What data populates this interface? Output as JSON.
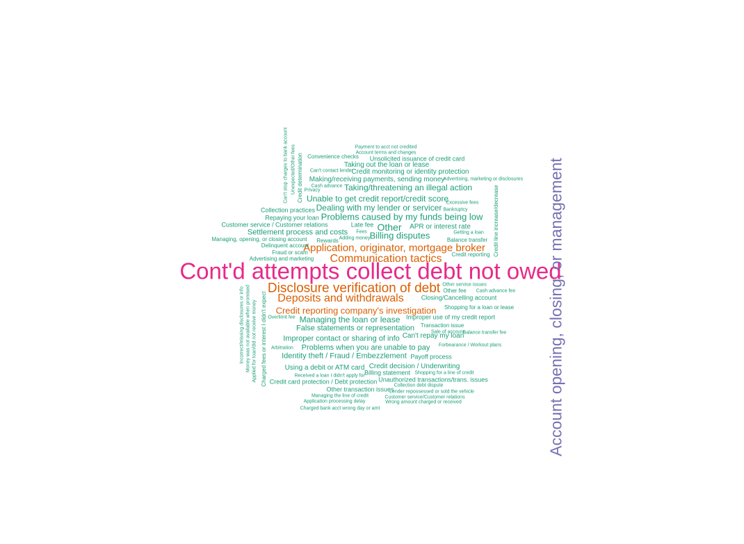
{
  "colors": {
    "background": "#ffffff",
    "level_1": "#e7298a",
    "level_2": "#7570b3",
    "level_3": "#d95f02",
    "level_4": "#1b9e77"
  },
  "words": [
    {
      "text": "Cont'd attempts collect debt not owed",
      "level": 1
    },
    {
      "text": "Account opening, closing, or management",
      "level": 2
    },
    {
      "text": "Disclosure verification of debt",
      "level": 3
    },
    {
      "text": "Application, originator, mortgage broker",
      "level": 3
    },
    {
      "text": "Communication tactics",
      "level": 3
    },
    {
      "text": "Deposits and withdrawals",
      "level": 3
    },
    {
      "text": "Credit reporting company's investigation",
      "level": 3
    },
    {
      "text": "Payment to acct not credited",
      "level": 4
    },
    {
      "text": "Account terms and changes",
      "level": 4
    },
    {
      "text": "Convenience checks",
      "level": 4
    },
    {
      "text": "Unsolicited issuance of credit card",
      "level": 4
    },
    {
      "text": "Taking out the loan or lease",
      "level": 4
    },
    {
      "text": "Can't contact lender",
      "level": 4
    },
    {
      "text": "Credit monitoring or identity protection",
      "level": 4
    },
    {
      "text": "Making/receiving payments, sending money",
      "level": 4
    },
    {
      "text": "Advertising, marketing or disclosures",
      "level": 4
    },
    {
      "text": "Cash advance",
      "level": 4
    },
    {
      "text": "Taking/threatening an illegal action",
      "level": 4
    },
    {
      "text": "Privacy",
      "level": 4
    },
    {
      "text": "Unable to get credit report/credit score",
      "level": 4
    },
    {
      "text": "Excessive fees",
      "level": 4
    },
    {
      "text": "Collection practices",
      "level": 4
    },
    {
      "text": "Dealing with my lender or servicer",
      "level": 4
    },
    {
      "text": "Bankruptcy",
      "level": 4
    },
    {
      "text": "Repaying your loan",
      "level": 4
    },
    {
      "text": "Problems caused by my funds being low",
      "level": 4
    },
    {
      "text": "Customer service / Customer relations",
      "level": 4
    },
    {
      "text": "Late fee",
      "level": 4
    },
    {
      "text": "Other",
      "level": 4
    },
    {
      "text": "APR or interest rate",
      "level": 4
    },
    {
      "text": "Settlement process and costs",
      "level": 4
    },
    {
      "text": "Fees",
      "level": 4
    },
    {
      "text": "Getting a loan",
      "level": 4
    },
    {
      "text": "Managing, opening, or closing account",
      "level": 4
    },
    {
      "text": "Rewards",
      "level": 4
    },
    {
      "text": "Adding money",
      "level": 4
    },
    {
      "text": "Billing disputes",
      "level": 4
    },
    {
      "text": "Balance transfer",
      "level": 4
    },
    {
      "text": "Delinquent account",
      "level": 4
    },
    {
      "text": "Fraud or scam",
      "level": 4
    },
    {
      "text": "Credit reporting",
      "level": 4
    },
    {
      "text": "Advertising and marketing",
      "level": 4
    },
    {
      "text": "Other service issues",
      "level": 4
    },
    {
      "text": "Other fee",
      "level": 4
    },
    {
      "text": "Cash advance fee",
      "level": 4
    },
    {
      "text": "Closing/Cancelling account",
      "level": 4
    },
    {
      "text": "Shopping for a loan or lease",
      "level": 4
    },
    {
      "text": "Overlimit fee",
      "level": 4
    },
    {
      "text": "Managing the loan or lease",
      "level": 4
    },
    {
      "text": "Improper use of my credit report",
      "level": 4
    },
    {
      "text": "Transaction issue",
      "level": 4
    },
    {
      "text": "False statements or representation",
      "level": 4
    },
    {
      "text": "Sale of account",
      "level": 4
    },
    {
      "text": "Balance transfer fee",
      "level": 4
    },
    {
      "text": "Can't repay my loan",
      "level": 4
    },
    {
      "text": "Improper contact or sharing of info",
      "level": 4
    },
    {
      "text": "Forbearance / Workout plans",
      "level": 4
    },
    {
      "text": "Arbitration",
      "level": 4
    },
    {
      "text": "Problems when you are unable to pay",
      "level": 4
    },
    {
      "text": "Identity theft / Fraud / Embezzlement",
      "level": 4
    },
    {
      "text": "Payoff process",
      "level": 4
    },
    {
      "text": "Using a debit or ATM card",
      "level": 4
    },
    {
      "text": "Credit decision / Underwriting",
      "level": 4
    },
    {
      "text": "Billing statement",
      "level": 4
    },
    {
      "text": "Shopping for a line of credit",
      "level": 4
    },
    {
      "text": "Received a loan I didn't apply for",
      "level": 4
    },
    {
      "text": "Credit card protection / Debt protection",
      "level": 4
    },
    {
      "text": "Unauthorized transactions/trans. issues",
      "level": 4
    },
    {
      "text": "Collection debt dispute",
      "level": 4
    },
    {
      "text": "Other transaction issues",
      "level": 4
    },
    {
      "text": "Lender repossessed or sold the vehicle",
      "level": 4
    },
    {
      "text": "Managing the line of credit",
      "level": 4
    },
    {
      "text": "Customer service/Customer relations",
      "level": 4
    },
    {
      "text": "Application processing delay",
      "level": 4
    },
    {
      "text": "Wrong amount charged or received",
      "level": 4
    },
    {
      "text": "Charged bank acct wrong day or amt",
      "level": 4
    },
    {
      "text": "Can't stop charges to bank account",
      "level": 4
    },
    {
      "text": "Unexpected/Other fees",
      "level": 4
    },
    {
      "text": "Credit determination",
      "level": 4
    },
    {
      "text": "Credit line increase/decrease",
      "level": 4
    },
    {
      "text": "Incorrect/missing disclosures or info",
      "level": 4
    },
    {
      "text": "Money was not available when promised",
      "level": 4
    },
    {
      "text": "Applied for loan/did not receive money",
      "level": 4
    },
    {
      "text": "Charged fees or interest I didn't expect",
      "level": 4
    }
  ]
}
